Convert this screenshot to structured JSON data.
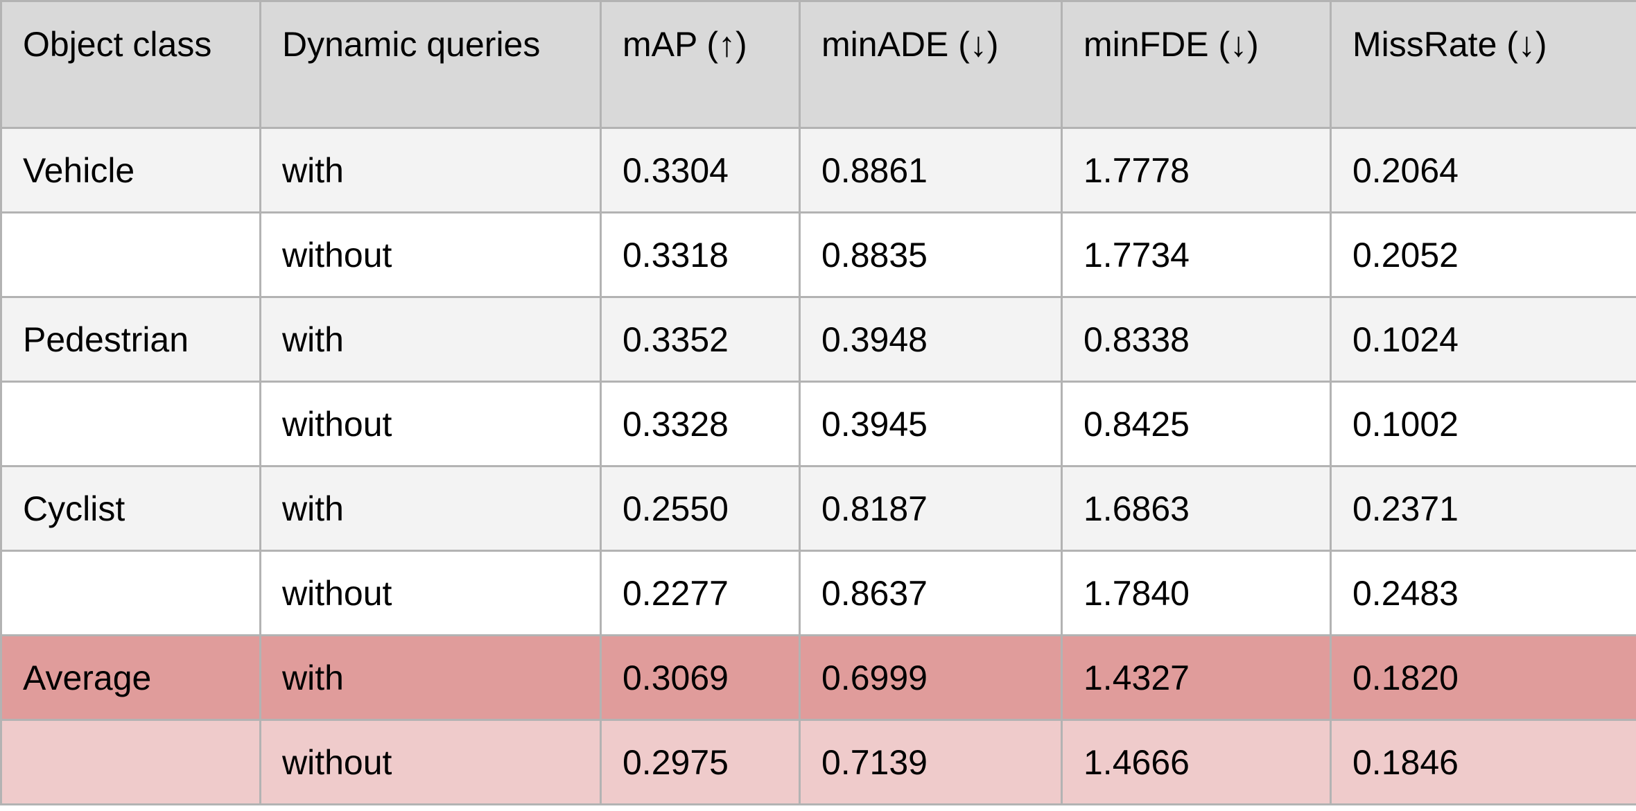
{
  "table": {
    "headers": [
      "Object class",
      "Dynamic queries",
      "mAP (↑)",
      "minADE (↓)",
      "minFDE (↓)",
      "MissRate (↓)"
    ],
    "rows": [
      {
        "style": "light",
        "cells": [
          "Vehicle",
          "with",
          "0.3304",
          "0.8861",
          "1.7778",
          "0.2064"
        ]
      },
      {
        "style": "white",
        "cells": [
          "",
          "without",
          "0.3318",
          "0.8835",
          "1.7734",
          "0.2052"
        ]
      },
      {
        "style": "light",
        "cells": [
          "Pedestrian",
          "with",
          "0.3352",
          "0.3948",
          "0.8338",
          "0.1024"
        ]
      },
      {
        "style": "white",
        "cells": [
          "",
          "without",
          "0.3328",
          "0.3945",
          "0.8425",
          "0.1002"
        ]
      },
      {
        "style": "light",
        "cells": [
          "Cyclist",
          "with",
          "0.2550",
          "0.8187",
          "1.6863",
          "0.2371"
        ]
      },
      {
        "style": "white",
        "cells": [
          "",
          "without",
          "0.2277",
          "0.8637",
          "1.7840",
          "0.2483"
        ]
      },
      {
        "style": "avg-strong",
        "cells": [
          "Average",
          "with",
          "0.3069",
          "0.6999",
          "1.4327",
          "0.1820"
        ]
      },
      {
        "style": "avg-soft",
        "cells": [
          "",
          "without",
          "0.2975",
          "0.7139",
          "1.4666",
          "0.1846"
        ]
      }
    ]
  },
  "colors": {
    "header_bg": "#d9d9d9",
    "row_light_bg": "#f3f3f3",
    "row_white_bg": "#ffffff",
    "average_with_bg": "#e09c9b",
    "average_without_bg": "#efcbcb",
    "grid_line": "#b3b3b3"
  }
}
